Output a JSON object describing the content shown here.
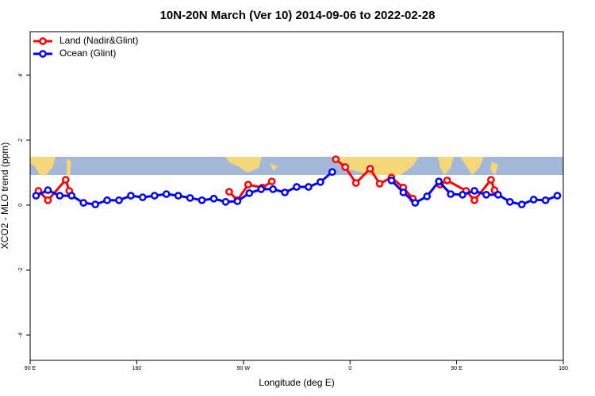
{
  "chart_data": {
    "type": "line",
    "title": "10N-20N March (Ver 10)   2014-09-06 to 2022-02-28",
    "xlabel": "Longitude (deg E)",
    "ylabel": "XCO2 - MLO trend (ppm)",
    "xlim": [
      90,
      540
    ],
    "xticks": [
      {
        "value": 90,
        "label": "90 E"
      },
      {
        "value": 180,
        "label": "180"
      },
      {
        "value": 270,
        "label": "90 W"
      },
      {
        "value": 360,
        "label": "0"
      },
      {
        "value": 450,
        "label": "90 E"
      },
      {
        "value": 540,
        "label": "180"
      }
    ],
    "ylim": [
      -4.78,
      5.34
    ],
    "yticks": [
      -4,
      -2,
      0,
      2,
      4
    ],
    "legend": "top-left",
    "series": [
      {
        "name": "Land (Nadir&Glint)",
        "color": "#ff0000",
        "x": [
          97,
          105,
          120,
          123,
          190,
          258,
          265,
          274,
          286,
          294,
          320,
          348,
          356,
          365,
          377,
          385,
          395,
          405,
          413,
          425,
          436,
          442,
          458,
          465,
          479,
          482
        ],
        "values": [
          0.44,
          0.15,
          0.78,
          0.44,
          null,
          0.41,
          0.15,
          0.63,
          0.54,
          0.73,
          null,
          1.41,
          1.17,
          0.68,
          1.12,
          0.66,
          0.85,
          0.54,
          0.2,
          null,
          0.63,
          0.76,
          0.44,
          0.15,
          0.78,
          0.46
        ]
      },
      {
        "name": "Ocean (Glint)",
        "color": "#0000ff",
        "x": [
          95,
          105,
          115,
          125,
          135,
          145,
          155,
          165,
          175,
          185,
          195,
          205,
          215,
          225,
          235,
          245,
          255,
          265,
          275,
          285,
          295,
          305,
          315,
          325,
          335,
          345,
          355,
          365,
          375,
          385,
          395,
          405,
          415,
          425,
          435,
          445,
          455,
          465,
          475,
          485,
          495,
          505,
          515,
          525,
          535
        ],
        "values": [
          0.29,
          0.46,
          0.29,
          0.29,
          0.07,
          0.02,
          0.15,
          0.15,
          0.29,
          0.24,
          0.29,
          0.34,
          0.29,
          0.22,
          0.15,
          0.2,
          0.1,
          0.12,
          0.37,
          0.49,
          0.49,
          0.39,
          0.56,
          0.56,
          0.71,
          1.02,
          null,
          null,
          null,
          null,
          0.76,
          0.39,
          0.07,
          0.27,
          0.73,
          0.34,
          0.32,
          0.44,
          0.32,
          0.32,
          0.1,
          0.02,
          0.17,
          0.15,
          0.29
        ]
      }
    ]
  }
}
